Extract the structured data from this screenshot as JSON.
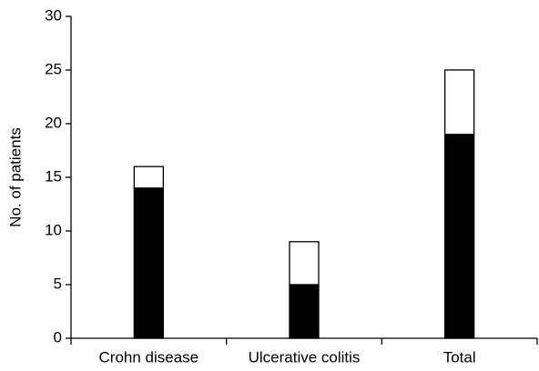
{
  "chart_data": {
    "type": "bar",
    "stacked": true,
    "y_label": "No. of patients",
    "categories": [
      "Crohn disease",
      "Ulcerative colitis",
      "Total"
    ],
    "series": [
      {
        "color": "#000000",
        "values": [
          14,
          5,
          19
        ]
      },
      {
        "color": "#ffffff",
        "values": [
          2,
          4,
          6
        ]
      }
    ],
    "ylim": [
      0,
      30
    ],
    "yticks": [
      0,
      5,
      10,
      15,
      20,
      25,
      30
    ],
    "grid": false
  }
}
